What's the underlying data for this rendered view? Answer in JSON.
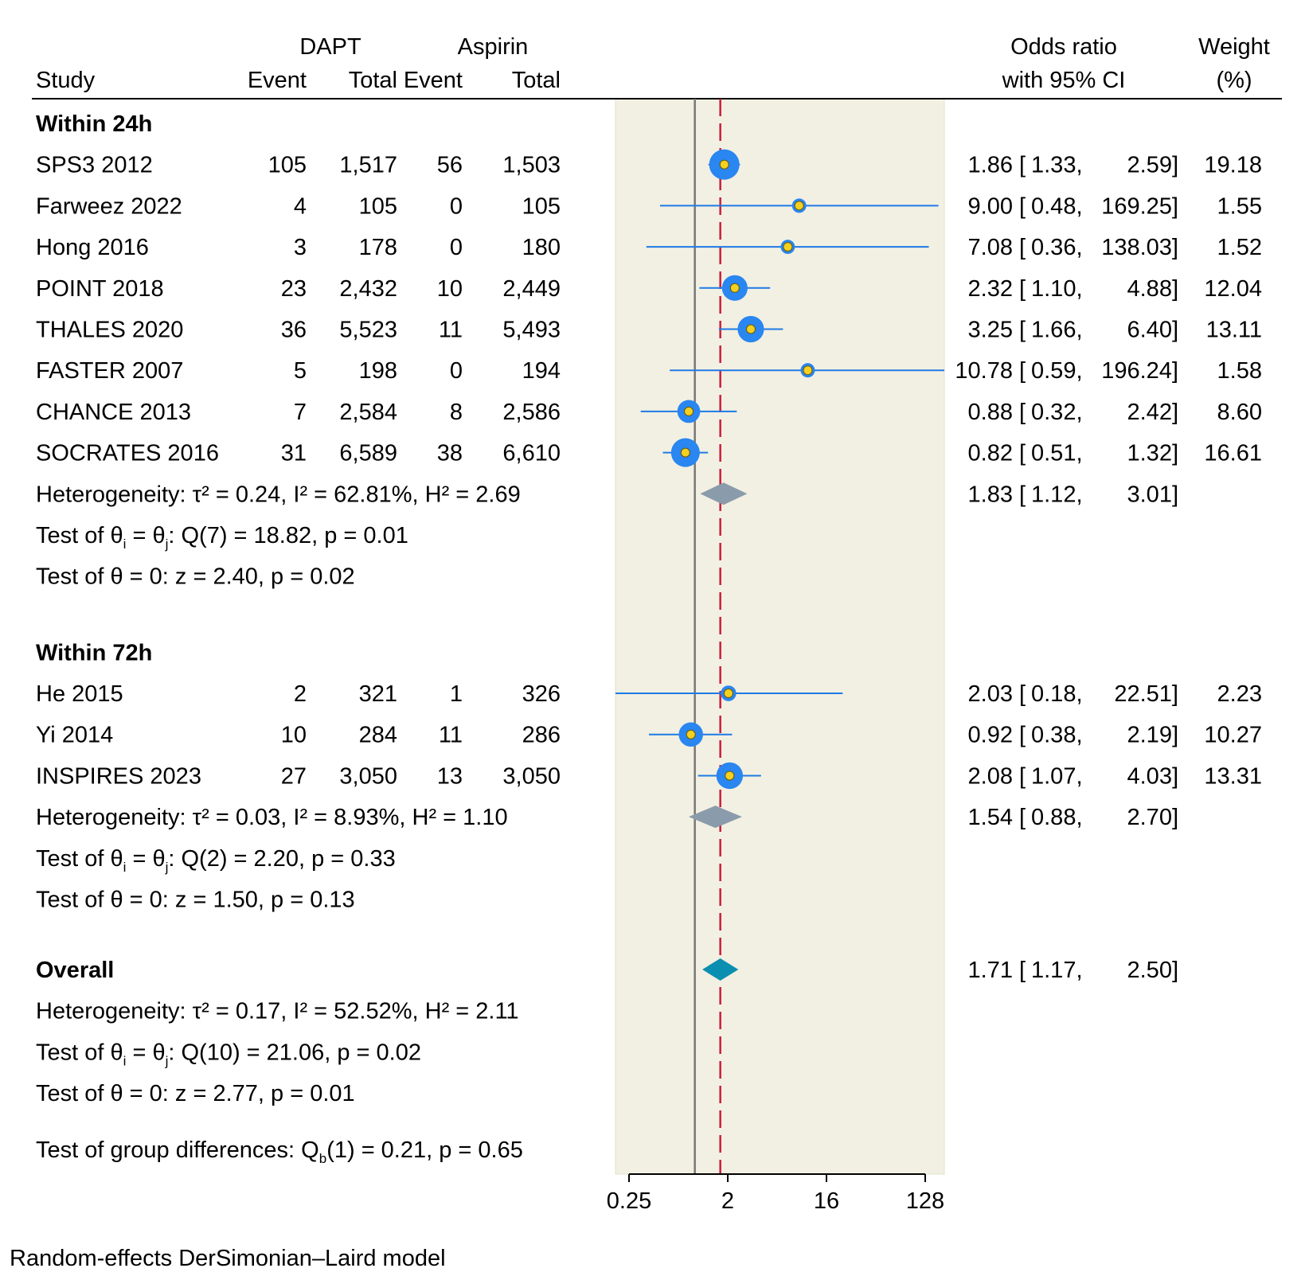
{
  "chart_data": {
    "type": "forest",
    "headers": {
      "study": "Study",
      "group1": "DAPT",
      "group2": "Aspirin",
      "event": "Event",
      "total": "Total",
      "or_line1": "Odds ratio",
      "or_line2": "with 95% CI",
      "weight_line1": "Weight",
      "weight_line2": "(%)"
    },
    "x_axis": {
      "scale": "log2",
      "range": [
        0.2,
        160
      ],
      "ticks": [
        0.25,
        2,
        16,
        128
      ],
      "tick_labels": [
        "0.25",
        "2",
        "16",
        "128"
      ],
      "no_effect_line": 1,
      "overall_line": 1.71
    },
    "subgroups": [
      {
        "title": "Within 24h",
        "studies": [
          {
            "name": "SPS3 2012",
            "dapt_event": "105",
            "dapt_total": "1,517",
            "asp_event": "56",
            "asp_total": "1,503",
            "or": 1.86,
            "lo": 1.33,
            "hi": 2.59,
            "weight": 19.18,
            "or_text": "1.86",
            "lo_text": "1.33",
            "hi_text": "2.59",
            "weight_text": "19.18"
          },
          {
            "name": "Farweez 2022",
            "dapt_event": "4",
            "dapt_total": "105",
            "asp_event": "0",
            "asp_total": "105",
            "or": 9.0,
            "lo": 0.48,
            "hi": 169.25,
            "weight": 1.55,
            "or_text": "9.00",
            "lo_text": "0.48",
            "hi_text": "169.25",
            "weight_text": "1.55"
          },
          {
            "name": "Hong 2016",
            "dapt_event": "3",
            "dapt_total": "178",
            "asp_event": "0",
            "asp_total": "180",
            "or": 7.08,
            "lo": 0.36,
            "hi": 138.03,
            "weight": 1.52,
            "or_text": "7.08",
            "lo_text": "0.36",
            "hi_text": "138.03",
            "weight_text": "1.52"
          },
          {
            "name": "POINT 2018",
            "dapt_event": "23",
            "dapt_total": "2,432",
            "asp_event": "10",
            "asp_total": "2,449",
            "or": 2.32,
            "lo": 1.1,
            "hi": 4.88,
            "weight": 12.04,
            "or_text": "2.32",
            "lo_text": "1.10",
            "hi_text": "4.88",
            "weight_text": "12.04"
          },
          {
            "name": "THALES 2020",
            "dapt_event": "36",
            "dapt_total": "5,523",
            "asp_event": "11",
            "asp_total": "5,493",
            "or": 3.25,
            "lo": 1.66,
            "hi": 6.4,
            "weight": 13.11,
            "or_text": "3.25",
            "lo_text": "1.66",
            "hi_text": "6.40",
            "weight_text": "13.11"
          },
          {
            "name": "FASTER 2007",
            "dapt_event": "5",
            "dapt_total": "198",
            "asp_event": "0",
            "asp_total": "194",
            "or": 10.78,
            "lo": 0.59,
            "hi": 196.24,
            "weight": 1.58,
            "or_text": "10.78",
            "lo_text": "0.59",
            "hi_text": "196.24",
            "weight_text": "1.58"
          },
          {
            "name": "CHANCE 2013",
            "dapt_event": "7",
            "dapt_total": "2,584",
            "asp_event": "8",
            "asp_total": "2,586",
            "or": 0.88,
            "lo": 0.32,
            "hi": 2.42,
            "weight": 8.6,
            "or_text": "0.88",
            "lo_text": "0.32",
            "hi_text": "2.42",
            "weight_text": "8.60"
          },
          {
            "name": "SOCRATES 2016",
            "dapt_event": "31",
            "dapt_total": "6,589",
            "asp_event": "38",
            "asp_total": "6,610",
            "or": 0.82,
            "lo": 0.51,
            "hi": 1.32,
            "weight": 16.61,
            "or_text": "0.82",
            "lo_text": "0.51",
            "hi_text": "1.32",
            "weight_text": "16.61"
          }
        ],
        "pooled": {
          "or": 1.83,
          "lo": 1.12,
          "hi": 3.01,
          "or_text": "1.83",
          "lo_text": "1.12",
          "hi_text": "3.01"
        },
        "heterogeneity": "Heterogeneity: τ² = 0.24, I² = 62.81%, H² = 2.69",
        "q_test": {
          "prefix": "Test of θ",
          "sub_i": "i",
          "mid": " = θ",
          "sub_j": "j",
          "suffix": ": Q(7) = 18.82, p = 0.01"
        },
        "z_test": "Test of θ = 0: z = 2.40, p = 0.02"
      },
      {
        "title": "Within 72h",
        "studies": [
          {
            "name": "He 2015",
            "dapt_event": "2",
            "dapt_total": "321",
            "asp_event": "1",
            "asp_total": "326",
            "or": 2.03,
            "lo": 0.18,
            "hi": 22.51,
            "weight": 2.23,
            "or_text": "2.03",
            "lo_text": "0.18",
            "hi_text": "22.51",
            "weight_text": "2.23"
          },
          {
            "name": "Yi 2014",
            "dapt_event": "10",
            "dapt_total": "284",
            "asp_event": "11",
            "asp_total": "286",
            "or": 0.92,
            "lo": 0.38,
            "hi": 2.19,
            "weight": 10.27,
            "or_text": "0.92",
            "lo_text": "0.38",
            "hi_text": "2.19",
            "weight_text": "10.27"
          },
          {
            "name": "INSPIRES 2023",
            "dapt_event": "27",
            "dapt_total": "3,050",
            "asp_event": "13",
            "asp_total": "3,050",
            "or": 2.08,
            "lo": 1.07,
            "hi": 4.03,
            "weight": 13.31,
            "or_text": "2.08",
            "lo_text": "1.07",
            "hi_text": "4.03",
            "weight_text": "13.31"
          }
        ],
        "pooled": {
          "or": 1.54,
          "lo": 0.88,
          "hi": 2.7,
          "or_text": "1.54",
          "lo_text": "0.88",
          "hi_text": "2.70"
        },
        "heterogeneity": "Heterogeneity: τ² = 0.03, I² = 8.93%, H² = 1.10",
        "q_test": {
          "prefix": "Test of θ",
          "sub_i": "i",
          "mid": " = θ",
          "sub_j": "j",
          "suffix": ": Q(2) = 2.20, p = 0.33"
        },
        "z_test": "Test of θ = 0: z = 1.50, p = 0.13"
      }
    ],
    "overall": {
      "title": "Overall",
      "or": 1.71,
      "lo": 1.17,
      "hi": 2.5,
      "or_text": "1.71",
      "lo_text": "1.17",
      "hi_text": "2.50",
      "heterogeneity": "Heterogeneity: τ² = 0.17, I² = 52.52%, H² = 2.11",
      "q_test": {
        "prefix": "Test of θ",
        "sub_i": "i",
        "mid": " = θ",
        "sub_j": "j",
        "suffix": ": Q(10) = 21.06, p = 0.02"
      },
      "z_test": "Test of θ = 0: z = 2.77, p = 0.01"
    },
    "group_diff": {
      "prefix": "Test of group differences: Q",
      "sub": "b",
      "suffix": "(1) = 0.21, p = 0.65"
    },
    "note": "Random-effects DerSimonian–Laird model",
    "colors": {
      "panel_bg": "#f2f0e2",
      "ci_line": "#1e7ae6",
      "marker": "#2a86f0",
      "marker_center": "#f5d020",
      "subgroup_diamond": "#8a9bab",
      "overall_diamond": "#0a8fb0",
      "overall_line": "#c81e3c",
      "no_effect_line": "#777777"
    }
  }
}
